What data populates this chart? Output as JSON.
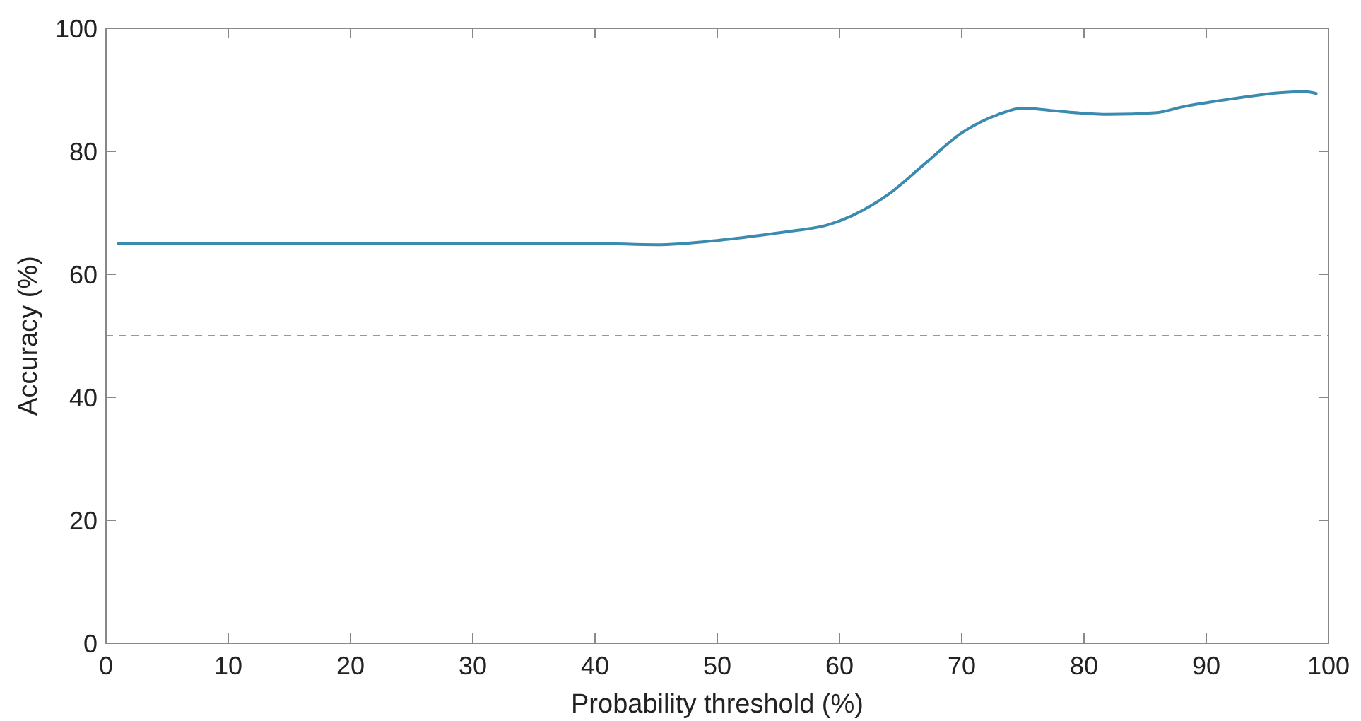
{
  "chart_data": {
    "type": "line",
    "xlabel": "Probability threshold (%)",
    "ylabel": "Accuracy (%)",
    "xlim": [
      0,
      100
    ],
    "xticks": [
      0,
      10,
      20,
      30,
      40,
      50,
      60,
      70,
      80,
      90,
      100
    ],
    "ylim": [
      0,
      100
    ],
    "yticks": [
      0,
      20,
      40,
      60,
      80,
      100
    ],
    "grid": false,
    "marker": "none",
    "line_style": "solid",
    "series": [
      {
        "color": "#3b8bb0",
        "x": [
          1,
          10,
          20,
          30,
          40,
          45,
          50,
          53,
          56,
          59,
          61,
          64,
          67,
          70,
          73,
          75,
          78,
          82,
          86,
          88,
          92,
          96,
          98,
          99
        ],
        "values": [
          65,
          65,
          65,
          65,
          65,
          64.8,
          65.5,
          66.2,
          67,
          68,
          69.5,
          73,
          78,
          83,
          86,
          87,
          86.5,
          86,
          86.3,
          87.2,
          88.5,
          89.5,
          89.7,
          89.4
        ]
      }
    ],
    "ref_lines": [
      {
        "axis": "y",
        "value": 50,
        "color": "#999999",
        "line_style": "dashed"
      }
    ]
  }
}
